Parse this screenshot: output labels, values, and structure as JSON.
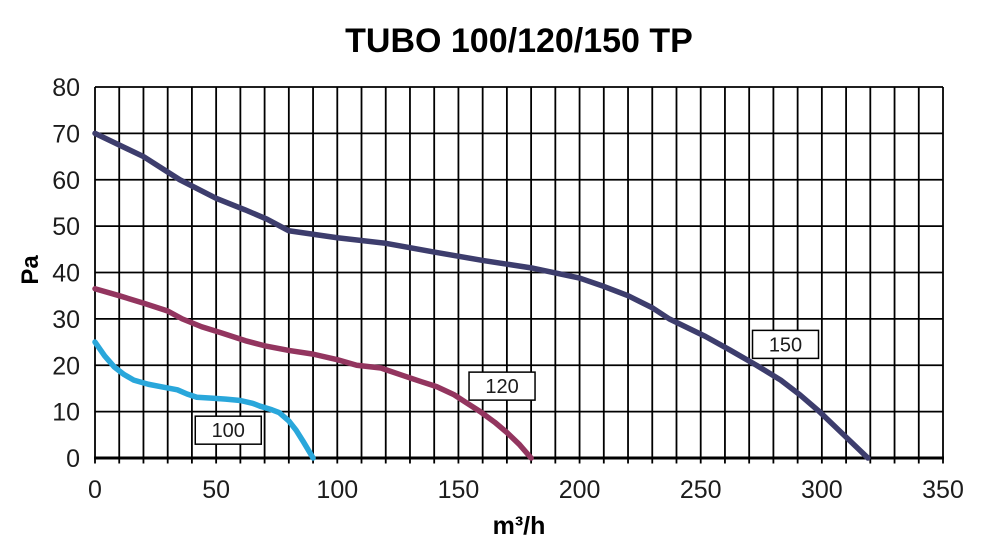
{
  "chart_data": {
    "type": "line",
    "title": "TUBO 100/120/150 TP",
    "xlabel": "m³/h",
    "ylabel": "Pa",
    "xlim": [
      0,
      350
    ],
    "ylim": [
      0,
      80
    ],
    "x_major_ticks": [
      0,
      50,
      100,
      150,
      200,
      250,
      300,
      350
    ],
    "y_major_ticks": [
      0,
      10,
      20,
      30,
      40,
      50,
      60,
      70,
      80
    ],
    "grid_step_x": 10,
    "grid_step_y": 10,
    "grid": true,
    "grid_color": "#000000",
    "tick_label_color": "#1c1c1c",
    "legend_position": "boxed-labels-on-curves",
    "series": [
      {
        "name": "150",
        "color": "#3d3d6d",
        "label_box": {
          "x": 285,
          "y": 24.5
        },
        "points": [
          [
            0,
            70
          ],
          [
            20,
            65
          ],
          [
            35,
            60
          ],
          [
            50,
            56
          ],
          [
            62,
            53.5
          ],
          [
            71,
            51.5
          ],
          [
            80,
            49
          ],
          [
            100,
            47.5
          ],
          [
            120,
            46.3
          ],
          [
            140,
            44.4
          ],
          [
            160,
            42.6
          ],
          [
            180,
            41
          ],
          [
            200,
            38.8
          ],
          [
            210,
            37
          ],
          [
            220,
            35
          ],
          [
            230,
            32.4
          ],
          [
            237,
            30
          ],
          [
            252,
            26.2
          ],
          [
            262,
            23.3
          ],
          [
            273,
            20
          ],
          [
            283,
            16.8
          ],
          [
            291,
            13.6
          ],
          [
            299,
            10
          ],
          [
            309,
            5
          ],
          [
            319,
            0
          ]
        ]
      },
      {
        "name": "120",
        "color": "#93355f",
        "label_box": {
          "x": 168,
          "y": 15.5
        },
        "points": [
          [
            0,
            36.5
          ],
          [
            10,
            35
          ],
          [
            20,
            33.4
          ],
          [
            30,
            31.7
          ],
          [
            36,
            30
          ],
          [
            44,
            28.3
          ],
          [
            52,
            27
          ],
          [
            62,
            25.3
          ],
          [
            70,
            24.2
          ],
          [
            80,
            23.2
          ],
          [
            90,
            22.4
          ],
          [
            100,
            21.2
          ],
          [
            108,
            20
          ],
          [
            118,
            19.4
          ],
          [
            127,
            17.8
          ],
          [
            135,
            16.4
          ],
          [
            141,
            15.4
          ],
          [
            148,
            13.7
          ],
          [
            153,
            12
          ],
          [
            159,
            10
          ],
          [
            165,
            7.7
          ],
          [
            170,
            5.5
          ],
          [
            175,
            3
          ],
          [
            180,
            0
          ]
        ]
      },
      {
        "name": "100",
        "color": "#29a7db",
        "label_box": {
          "x": 55,
          "y": 6
        },
        "points": [
          [
            0,
            25
          ],
          [
            4,
            22
          ],
          [
            8,
            19.6
          ],
          [
            12,
            18
          ],
          [
            16,
            16.8
          ],
          [
            22,
            15.9
          ],
          [
            28,
            15.3
          ],
          [
            34,
            14.7
          ],
          [
            38,
            13.8
          ],
          [
            42,
            13.1
          ],
          [
            48,
            12.9
          ],
          [
            54,
            12.7
          ],
          [
            60,
            12.4
          ],
          [
            65,
            11.8
          ],
          [
            68,
            11.2
          ],
          [
            73,
            10.4
          ],
          [
            76,
            9.8
          ],
          [
            80,
            8
          ],
          [
            83,
            6
          ],
          [
            86,
            3.5
          ],
          [
            90,
            0
          ]
        ]
      }
    ]
  }
}
